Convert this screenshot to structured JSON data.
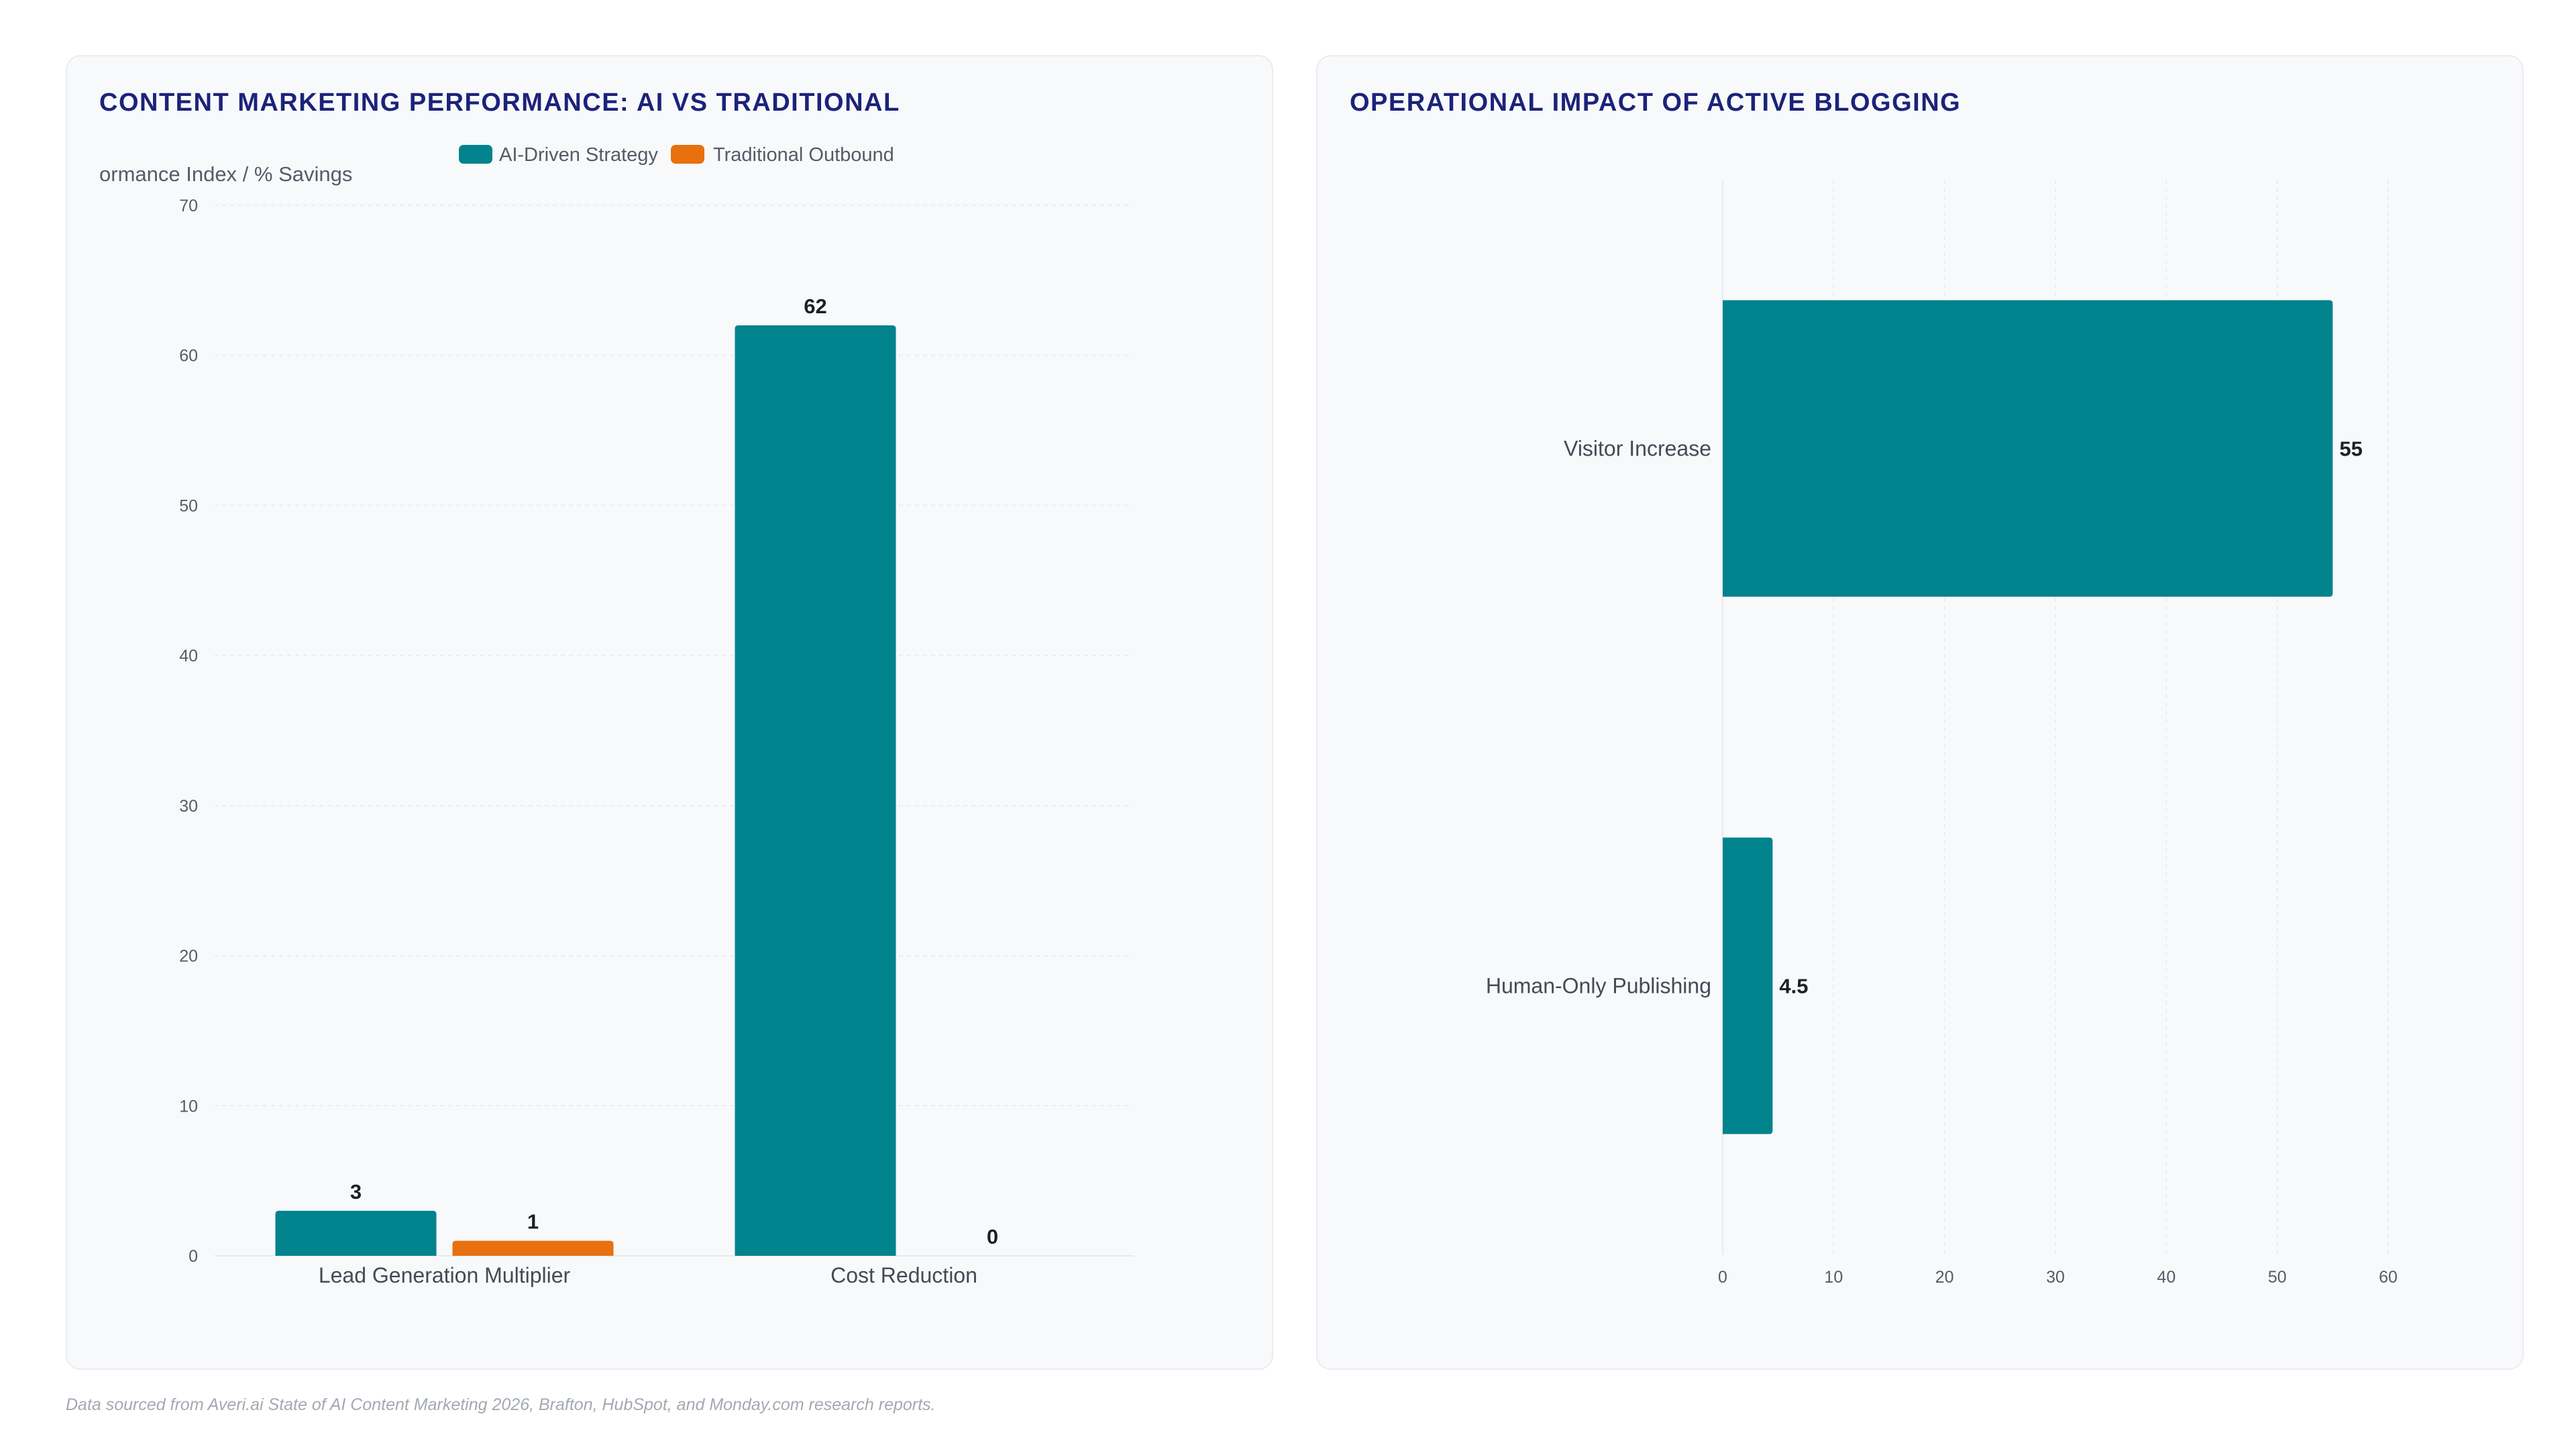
{
  "source_note": "Data sourced from Averi.ai State of AI Content Marketing 2026, Brafton, HubSpot, and Monday.com research reports.",
  "colors": {
    "teal": "#00838c",
    "orange": "#e8700f",
    "title": "#1b237a"
  },
  "chart_data": [
    {
      "type": "bar",
      "title": "CONTENT MARKETING PERFORMANCE: AI VS TRADITIONAL",
      "ylabel": "ormance Index / % Savings",
      "xlabel": "",
      "categories": [
        "Lead Generation Multiplier",
        "Cost Reduction"
      ],
      "series": [
        {
          "name": "AI-Driven Strategy",
          "color": "#00838c",
          "values": [
            3,
            62
          ]
        },
        {
          "name": "Traditional Outbound",
          "color": "#e8700f",
          "values": [
            1,
            0
          ]
        }
      ],
      "ylim": [
        0,
        70
      ],
      "yticks": [
        "0",
        "10",
        "20",
        "30",
        "40",
        "50",
        "60",
        "70"
      ],
      "grid": true,
      "legend": "top-center"
    },
    {
      "type": "bar",
      "orientation": "horizontal",
      "title": "OPERATIONAL IMPACT OF ACTIVE BLOGGING",
      "categories": [
        "Visitor Increase",
        "Human-Only Publishing"
      ],
      "values": [
        55,
        4.5
      ],
      "value_labels": [
        "55",
        "4.5"
      ],
      "color": "#00838c",
      "xlim": [
        0,
        60
      ],
      "xticks": [
        "0",
        "10",
        "20",
        "30",
        "40",
        "50",
        "60"
      ],
      "grid": true,
      "legend": "none"
    }
  ]
}
